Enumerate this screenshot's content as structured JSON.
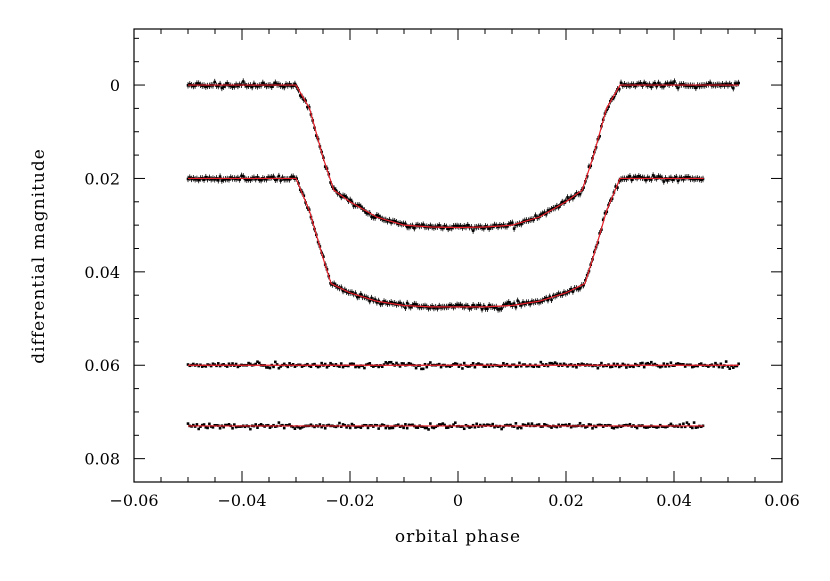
{
  "chart_data": {
    "type": "scatter",
    "title": "",
    "xlabel": "orbital phase",
    "ylabel": "differential magnitude",
    "xlim": [
      -0.06,
      0.06
    ],
    "ylim": [
      -0.012,
      0.085
    ],
    "y_inverted": true,
    "grid": false,
    "x_ticks": [
      -0.06,
      -0.04,
      -0.02,
      0,
      0.02,
      0.04,
      0.06
    ],
    "x_tick_labels": [
      "−0.06",
      "−0.04",
      "−0.02",
      "0",
      "0.02",
      "0.04",
      "0.06"
    ],
    "y_ticks": [
      0,
      0.02,
      0.04,
      0.06,
      0.08
    ],
    "y_tick_labels": [
      "0",
      "0.02",
      "0.04",
      "0.06",
      "0.08"
    ],
    "colors": {
      "points": "#000000",
      "model": "#e8202a",
      "axes": "#000000"
    },
    "series": [
      {
        "kind": "transit",
        "has_error_bars": true,
        "x_range": [
          -0.05,
          0.052
        ],
        "baseline": 0.0,
        "depth": 0.0305,
        "contact_phases": {
          "t1": -0.03,
          "t2": -0.023,
          "t3": 0.023,
          "t4": 0.03
        },
        "model_points": [
          [
            -0.05,
            0.0
          ],
          [
            -0.03,
            0.0
          ],
          [
            -0.0275,
            0.005
          ],
          [
            -0.025,
            0.0155
          ],
          [
            -0.023,
            0.0225
          ],
          [
            -0.02,
            0.025
          ],
          [
            -0.015,
            0.0283
          ],
          [
            -0.01,
            0.03
          ],
          [
            -0.005,
            0.0304
          ],
          [
            0.0,
            0.0305
          ],
          [
            0.005,
            0.0304
          ],
          [
            0.01,
            0.03
          ],
          [
            0.015,
            0.0283
          ],
          [
            0.02,
            0.025
          ],
          [
            0.023,
            0.0225
          ],
          [
            0.025,
            0.0155
          ],
          [
            0.0275,
            0.005
          ],
          [
            0.03,
            0.0
          ],
          [
            0.052,
            0.0
          ]
        ]
      },
      {
        "kind": "transit",
        "has_error_bars": true,
        "x_range": [
          -0.05,
          0.0455
        ],
        "baseline": 0.02,
        "depth": 0.0275,
        "contact_phases": {
          "t1": -0.03,
          "t2": -0.0235,
          "t3": 0.0235,
          "t4": 0.03
        },
        "model_points": [
          [
            -0.05,
            0.02
          ],
          [
            -0.03,
            0.02
          ],
          [
            -0.0275,
            0.027
          ],
          [
            -0.025,
            0.037
          ],
          [
            -0.0235,
            0.0425
          ],
          [
            -0.02,
            0.0445
          ],
          [
            -0.015,
            0.0463
          ],
          [
            -0.01,
            0.0472
          ],
          [
            -0.005,
            0.0475
          ],
          [
            0.0,
            0.0475
          ],
          [
            0.005,
            0.0475
          ],
          [
            0.01,
            0.0472
          ],
          [
            0.015,
            0.0463
          ],
          [
            0.02,
            0.0445
          ],
          [
            0.0235,
            0.0425
          ],
          [
            0.025,
            0.037
          ],
          [
            0.0275,
            0.027
          ],
          [
            0.03,
            0.02
          ],
          [
            0.0455,
            0.02
          ]
        ]
      },
      {
        "kind": "residuals",
        "has_error_bars": false,
        "x_range": [
          -0.05,
          0.052
        ],
        "baseline": 0.06,
        "model_points": [
          [
            -0.05,
            0.06
          ],
          [
            0.052,
            0.06
          ]
        ]
      },
      {
        "kind": "residuals",
        "has_error_bars": false,
        "x_range": [
          -0.05,
          0.0455
        ],
        "baseline": 0.073,
        "model_points": [
          [
            -0.05,
            0.073
          ],
          [
            0.0455,
            0.073
          ]
        ]
      }
    ]
  }
}
